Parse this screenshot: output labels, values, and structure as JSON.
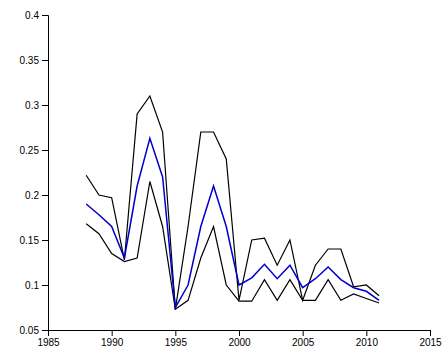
{
  "chart_data": {
    "type": "line",
    "x": [
      1988,
      1989,
      1990,
      1991,
      1992,
      1993,
      1994,
      1995,
      1996,
      1997,
      1998,
      1999,
      2000,
      2001,
      2002,
      2003,
      2004,
      2005,
      2006,
      2007,
      2008,
      2009,
      2010,
      2011
    ],
    "series": [
      {
        "color": "#000000",
        "values": [
          0.222,
          0.2,
          0.197,
          0.128,
          0.29,
          0.31,
          0.27,
          0.073,
          0.165,
          0.27,
          0.27,
          0.24,
          0.083,
          0.15,
          0.152,
          0.122,
          0.15,
          0.083,
          0.122,
          0.14,
          0.14,
          0.098,
          0.1,
          0.088
        ]
      },
      {
        "color": "#000000",
        "values": [
          0.168,
          0.157,
          0.135,
          0.126,
          0.13,
          0.215,
          0.165,
          0.073,
          0.083,
          0.13,
          0.165,
          0.1,
          0.082,
          0.082,
          0.106,
          0.083,
          0.106,
          0.083,
          0.083,
          0.106,
          0.083,
          0.09,
          0.085,
          0.08
        ]
      },
      {
        "color": "#0000cc",
        "values": [
          0.19,
          0.178,
          0.165,
          0.13,
          0.21,
          0.263,
          0.22,
          0.075,
          0.1,
          0.165,
          0.21,
          0.165,
          0.1,
          0.108,
          0.123,
          0.107,
          0.122,
          0.097,
          0.107,
          0.12,
          0.106,
          0.097,
          0.093,
          0.083
        ]
      }
    ],
    "xlim": [
      1985,
      2015
    ],
    "xticks": [
      1985,
      1990,
      1995,
      2000,
      2005,
      2010,
      2015
    ],
    "ylim": [
      0.05,
      0.4
    ],
    "yticks": [
      0.05,
      0.1,
      0.15,
      0.2,
      0.25,
      0.3,
      0.35,
      0.4
    ],
    "grid": false
  }
}
